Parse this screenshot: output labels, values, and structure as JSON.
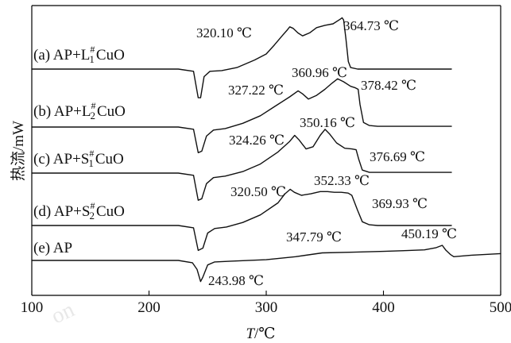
{
  "chart_data": {
    "type": "line",
    "xlabel": "T/℃",
    "ylabel": "热流/mW",
    "xlim": [
      100,
      500
    ],
    "xticks": [
      100,
      200,
      300,
      400,
      500
    ],
    "xtick_labels": [
      "100",
      "200",
      "300",
      "400",
      "500"
    ],
    "grid": false,
    "series": [
      {
        "label_text": {
          "prefix": "(a) AP+L",
          "sup": "#",
          "sub": "1",
          "suffix": "CuO"
        },
        "annotations": [
          "320.10 ℃",
          "364.73 ℃"
        ],
        "points": [
          [
            100,
            0
          ],
          [
            225,
            0
          ],
          [
            238,
            -3
          ],
          [
            242,
            -38
          ],
          [
            244,
            -38
          ],
          [
            247,
            -10
          ],
          [
            252,
            -3
          ],
          [
            262,
            -2
          ],
          [
            275,
            2
          ],
          [
            290,
            12
          ],
          [
            300,
            20
          ],
          [
            307,
            32
          ],
          [
            314,
            45
          ],
          [
            318,
            52
          ],
          [
            320.1,
            56
          ],
          [
            323,
            54
          ],
          [
            327,
            48
          ],
          [
            331,
            44
          ],
          [
            337,
            48
          ],
          [
            343,
            55
          ],
          [
            350,
            58
          ],
          [
            357,
            60
          ],
          [
            363,
            66
          ],
          [
            364.73,
            68
          ],
          [
            366,
            65
          ],
          [
            368,
            40
          ],
          [
            370,
            10
          ],
          [
            372,
            2
          ],
          [
            378,
            0
          ],
          [
            458,
            0
          ]
        ]
      },
      {
        "label_text": {
          "prefix": "(b) AP+L",
          "sup": "#",
          "sub": "2",
          "suffix": "CuO"
        },
        "annotations": [
          "327.22 ℃",
          "360.96 ℃",
          "378.42 ℃"
        ],
        "points": [
          [
            100,
            0
          ],
          [
            225,
            0
          ],
          [
            238,
            -3
          ],
          [
            242,
            -34
          ],
          [
            245,
            -32
          ],
          [
            249,
            -12
          ],
          [
            255,
            -4
          ],
          [
            265,
            -2
          ],
          [
            280,
            5
          ],
          [
            295,
            15
          ],
          [
            308,
            28
          ],
          [
            320,
            40
          ],
          [
            327.22,
            48
          ],
          [
            331,
            44
          ],
          [
            336,
            37
          ],
          [
            343,
            42
          ],
          [
            350,
            50
          ],
          [
            356,
            58
          ],
          [
            360.96,
            64
          ],
          [
            366,
            60
          ],
          [
            372,
            54
          ],
          [
            376,
            52
          ],
          [
            378.42,
            50
          ],
          [
            380,
            30
          ],
          [
            383,
            6
          ],
          [
            388,
            2
          ],
          [
            395,
            1
          ],
          [
            458,
            1
          ]
        ]
      },
      {
        "label_text": {
          "prefix": "(c) AP+S",
          "sup": "#",
          "sub": "1",
          "suffix": "CuO"
        },
        "annotations": [
          "324.26 ℃",
          "350.16 ℃",
          "376.69 ℃"
        ],
        "points": [
          [
            100,
            0
          ],
          [
            225,
            0
          ],
          [
            238,
            -3
          ],
          [
            242,
            -36
          ],
          [
            245,
            -34
          ],
          [
            249,
            -14
          ],
          [
            255,
            -6
          ],
          [
            265,
            -4
          ],
          [
            280,
            2
          ],
          [
            295,
            12
          ],
          [
            310,
            28
          ],
          [
            320,
            42
          ],
          [
            324.26,
            50
          ],
          [
            328,
            44
          ],
          [
            334,
            32
          ],
          [
            340,
            35
          ],
          [
            346,
            50
          ],
          [
            350.16,
            58
          ],
          [
            354,
            52
          ],
          [
            360,
            40
          ],
          [
            367,
            33
          ],
          [
            373,
            32
          ],
          [
            376.69,
            31
          ],
          [
            379,
            18
          ],
          [
            382,
            4
          ],
          [
            388,
            1
          ],
          [
            395,
            1
          ],
          [
            458,
            1
          ]
        ]
      },
      {
        "label_text": {
          "prefix": "(d) AP+S",
          "sup": "#",
          "sub": "2",
          "suffix": "CuO"
        },
        "annotations": [
          "320.50 ℃",
          "352.33 ℃",
          "369.93 ℃"
        ],
        "points": [
          [
            100,
            0
          ],
          [
            225,
            0
          ],
          [
            238,
            -3
          ],
          [
            242,
            -33
          ],
          [
            246,
            -30
          ],
          [
            250,
            -10
          ],
          [
            256,
            -4
          ],
          [
            266,
            -2
          ],
          [
            280,
            4
          ],
          [
            295,
            14
          ],
          [
            310,
            30
          ],
          [
            316,
            42
          ],
          [
            320.5,
            48
          ],
          [
            324,
            44
          ],
          [
            330,
            40
          ],
          [
            338,
            42
          ],
          [
            346,
            45
          ],
          [
            352.33,
            45
          ],
          [
            358,
            44
          ],
          [
            364,
            44
          ],
          [
            369.93,
            43
          ],
          [
            373,
            40
          ],
          [
            378,
            20
          ],
          [
            382,
            5
          ],
          [
            388,
            1
          ],
          [
            395,
            0
          ],
          [
            458,
            0
          ]
        ]
      },
      {
        "label_text": {
          "prefix": "(e) AP",
          "sup": "",
          "sub": "",
          "suffix": ""
        },
        "annotations": [
          "243.98 ℃",
          "347.79 ℃",
          "450.19 ℃"
        ],
        "points": [
          [
            100,
            0
          ],
          [
            225,
            0
          ],
          [
            237,
            -3
          ],
          [
            241,
            -12
          ],
          [
            243.98,
            -28
          ],
          [
            246,
            -22
          ],
          [
            250,
            -6
          ],
          [
            256,
            -2
          ],
          [
            270,
            -1
          ],
          [
            300,
            1
          ],
          [
            325,
            5
          ],
          [
            347.79,
            10
          ],
          [
            375,
            11
          ],
          [
            400,
            12
          ],
          [
            420,
            13
          ],
          [
            435,
            14
          ],
          [
            445,
            17
          ],
          [
            450.19,
            20
          ],
          [
            453,
            14
          ],
          [
            457,
            8
          ],
          [
            460,
            5
          ],
          [
            475,
            7
          ],
          [
            500,
            9
          ]
        ]
      }
    ]
  }
}
